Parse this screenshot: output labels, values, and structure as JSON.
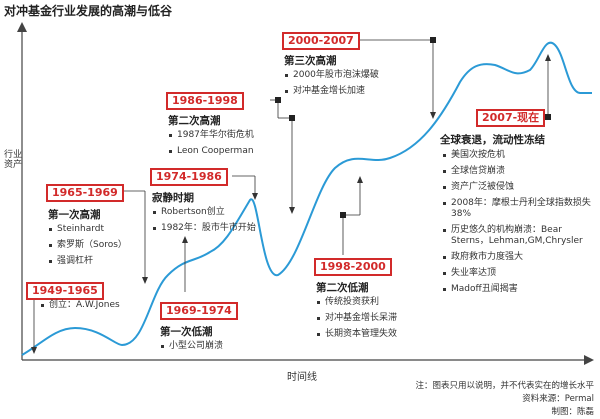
{
  "title": "对冲基金行业发展的高潮与低谷",
  "y_axis_label": "行业资产",
  "x_axis_label": "时间线",
  "periods": [
    {
      "range": "1949-1965",
      "phase": "",
      "bullets": [
        "创立：A.W.Jones"
      ]
    },
    {
      "range": "1965-1969",
      "phase": "第一次高潮",
      "bullets": [
        "Steinhardt",
        "索罗斯（Soros）",
        "强调杠杆"
      ]
    },
    {
      "range": "1969-1974",
      "phase": "第一次低潮",
      "bullets": [
        "小型公司崩溃"
      ]
    },
    {
      "range": "1974-1986",
      "phase": "寂静时期",
      "bullets": [
        "Robertson创立",
        "1982年：股市牛市开始"
      ]
    },
    {
      "range": "1986-1998",
      "phase": "第二次高潮",
      "bullets": [
        "1987年华尔街危机",
        "Leon Cooperman"
      ]
    },
    {
      "range": "1998-2000",
      "phase": "第二次低潮",
      "bullets": [
        "传统投资获利",
        "对冲基金增长呆滞",
        "长期资本管理失效"
      ]
    },
    {
      "range": "2000-2007",
      "phase": "第三次高潮",
      "bullets": [
        "2000年股市泡沫爆破",
        "对冲基金增长加速"
      ]
    },
    {
      "range": "2007-现在",
      "phase": "全球衰退，流动性冻结",
      "bullets": [
        "美国次按危机",
        "全球信贷崩溃",
        "资产广泛被侵蚀",
        "2008年：摩根士丹利全球指数损失38%",
        "历史悠久的机构崩溃：Bear Sterns，Lehman,GM,Chrysler",
        "政府救市力度强大",
        "失业率达顶",
        "Madoff丑闻揭害"
      ]
    }
  ],
  "notes": {
    "disclaimer": "注：图表只用以说明，并不代表实在的增长水平",
    "source": "资料来源：Permal",
    "credit": "制图：陈磊"
  },
  "colors": {
    "curve": "#2b9ad6",
    "period_box": "#d22a2a"
  }
}
